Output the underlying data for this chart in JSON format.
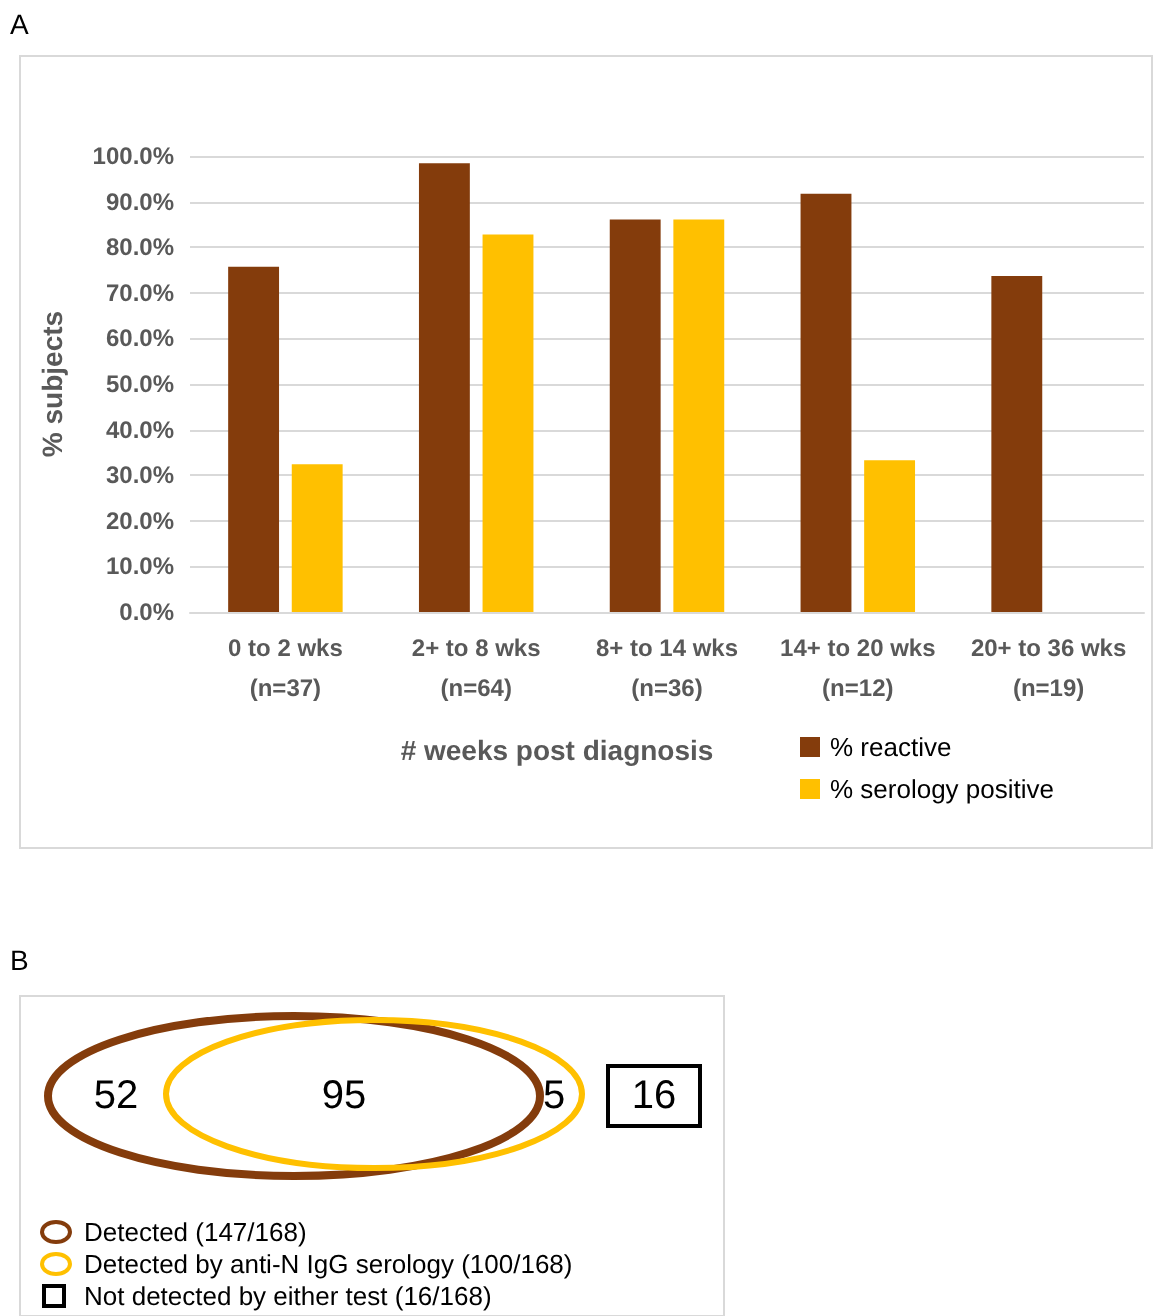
{
  "chart_data": [
    {
      "type": "bar",
      "title": "A",
      "xlabel": "# weeks post diagnosis",
      "ylabel": "% subjects",
      "categories": [
        "0 to 2 wks\n(n=37)",
        "2+ to 8 wks\n(n=64)",
        "8+ to 14 wks\n(n=36)",
        "14+ to 20 wks\n(n=12)",
        "20+ to 36 wks\n(n=19)"
      ],
      "series": [
        {
          "name": "% reactive",
          "color": "#843c0c",
          "values": [
            75.7,
            98.4,
            86.1,
            91.7,
            73.7
          ]
        },
        {
          "name": "% serology positive",
          "color": "#ffc000",
          "values": [
            32.4,
            82.8,
            86.1,
            33.3,
            null
          ]
        }
      ],
      "ylim": [
        0,
        100
      ],
      "yticks": [
        {
          "value": 0,
          "label": "0.0%"
        },
        {
          "value": 10,
          "label": "10.0%"
        },
        {
          "value": 20,
          "label": "20.0%"
        },
        {
          "value": 30,
          "label": "30.0%"
        },
        {
          "value": 40,
          "label": "40.0%"
        },
        {
          "value": 50,
          "label": "50.0%"
        },
        {
          "value": 60,
          "label": "60.0%"
        },
        {
          "value": 70,
          "label": "70.0%"
        },
        {
          "value": 80,
          "label": "80.0%"
        },
        {
          "value": 90,
          "label": "90.0%"
        },
        {
          "value": 100,
          "label": "100.0%"
        }
      ],
      "grid": "y",
      "legend": "bottom right"
    },
    {
      "type": "other",
      "title": "B",
      "annotations": [
        "52",
        "95",
        "5",
        "16"
      ],
      "series": [
        {
          "name": "Detected (147/168)",
          "color": "#843c0c"
        },
        {
          "name": "Detected by anti-N IgG serology (100/168)",
          "color": "#ffc000"
        },
        {
          "name": "Not detected by either test (16/168)",
          "color": "#000000"
        }
      ]
    }
  ]
}
